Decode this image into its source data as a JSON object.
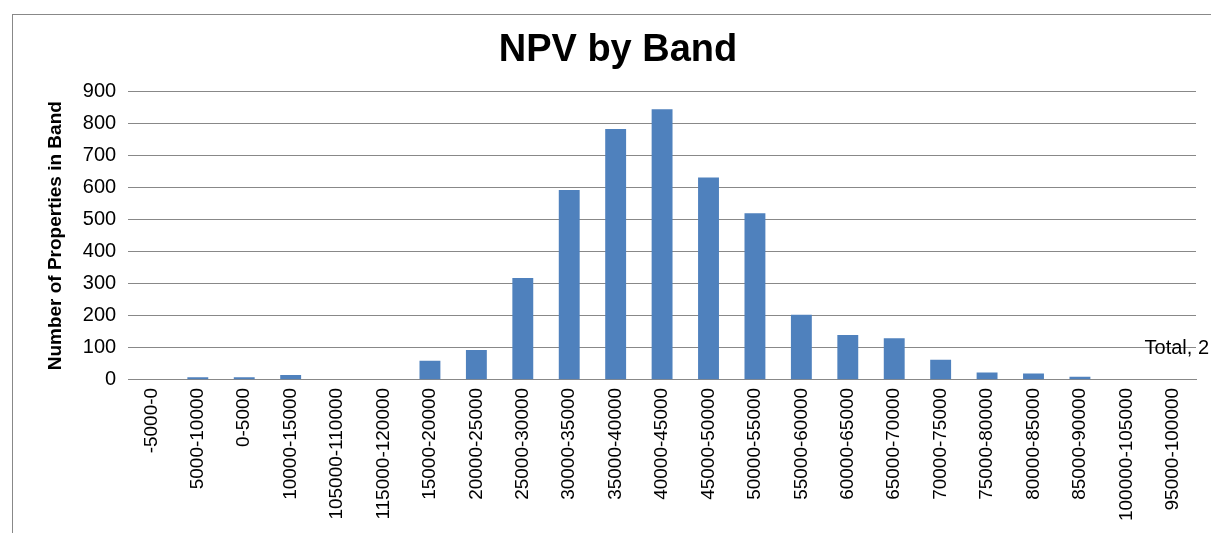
{
  "chart_data": {
    "type": "bar",
    "title": "NPV by Band",
    "ylabel": "Number of Properties in Band",
    "categories": [
      "-5000-0",
      "5000-10000",
      "0-5000",
      "10000-15000",
      "105000-110000",
      "115000-120000",
      "15000-20000",
      "20000-25000",
      "25000-30000",
      "30000-35000",
      "35000-40000",
      "40000-45000",
      "45000-50000",
      "50000-55000",
      "55000-60000",
      "60000-65000",
      "65000-70000",
      "70000-75000",
      "75000-80000",
      "80000-85000",
      "85000-90000",
      "100000-105000",
      "95000-100000"
    ],
    "values": [
      0,
      8,
      8,
      15,
      0,
      0,
      60,
      93,
      318,
      593,
      783,
      845,
      632,
      520,
      203,
      140,
      130,
      63,
      23,
      20,
      10,
      0,
      0
    ],
    "color": "#4f81bd",
    "ylim": [
      0,
      900
    ],
    "yticks": [
      0,
      100,
      200,
      300,
      400,
      500,
      600,
      700,
      800,
      900
    ],
    "grid": "y",
    "annotations": [
      "Total, 2"
    ]
  }
}
